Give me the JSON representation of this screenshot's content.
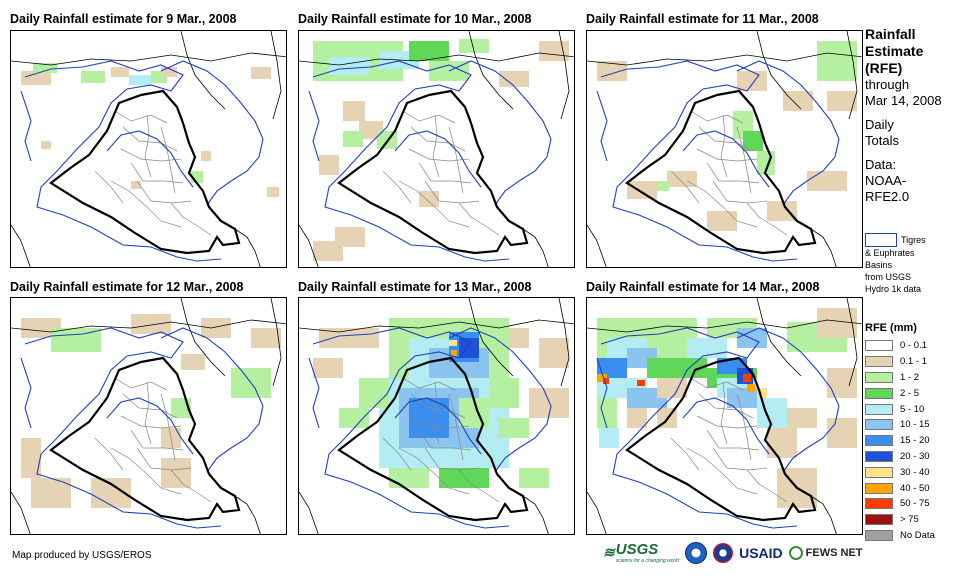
{
  "panels": [
    {
      "title": "Daily Rainfall estimate for 9 Mar., 2008"
    },
    {
      "title": "Daily Rainfall estimate for 10 Mar., 2008"
    },
    {
      "title": "Daily Rainfall estimate for 11 Mar., 2008"
    },
    {
      "title": "Daily Rainfall estimate for 12 Mar., 2008"
    },
    {
      "title": "Daily Rainfall estimate for 13 Mar., 2008"
    },
    {
      "title": "Daily Rainfall estimate for 14 Mar., 2008"
    }
  ],
  "sidebar": {
    "title_line1": "Rainfall",
    "title_line2": "Estimate",
    "title_line3": "(RFE)",
    "through": "through",
    "date": "Mar 14, 2008",
    "daily1": "Daily",
    "daily2": "Totals",
    "data1": "Data:",
    "data2": "NOAA-",
    "data3": "RFE2.0"
  },
  "basin_key": {
    "line1": "Tigres",
    "line2": "& Euphrates",
    "line3": "Basins",
    "line4": "from USGS",
    "line5": "Hydro 1k data",
    "line_color": "#2040c0"
  },
  "legend": {
    "title": "RFE (mm)",
    "items": [
      {
        "label": "0 - 0.1",
        "color": "#ffffff"
      },
      {
        "label": "0.1 - 1",
        "color": "#e6d3b3"
      },
      {
        "label": "1 - 2",
        "color": "#b4f0a0"
      },
      {
        "label": "2 - 5",
        "color": "#5fd85a"
      },
      {
        "label": "5 - 10",
        "color": "#b4ecf4"
      },
      {
        "label": "10 - 15",
        "color": "#8cc4f0"
      },
      {
        "label": "15 - 20",
        "color": "#3a8ef0"
      },
      {
        "label": "20 - 30",
        "color": "#1e50d8"
      },
      {
        "label": "30 - 40",
        "color": "#ffe28a"
      },
      {
        "label": "40 - 50",
        "color": "#ffa500"
      },
      {
        "label": "50 - 75",
        "color": "#ff3c00"
      },
      {
        "label": "> 75",
        "color": "#a01010"
      },
      {
        "label": "No Data",
        "color": "#a0a0a0"
      }
    ]
  },
  "footer": {
    "credit": "Map produced by USGS/EROS",
    "logo_usgs": "USGS",
    "logo_usgs_sub": "science for a changing world",
    "logo_usaid": "USAID",
    "logo_fews": "FEWS NET"
  }
}
